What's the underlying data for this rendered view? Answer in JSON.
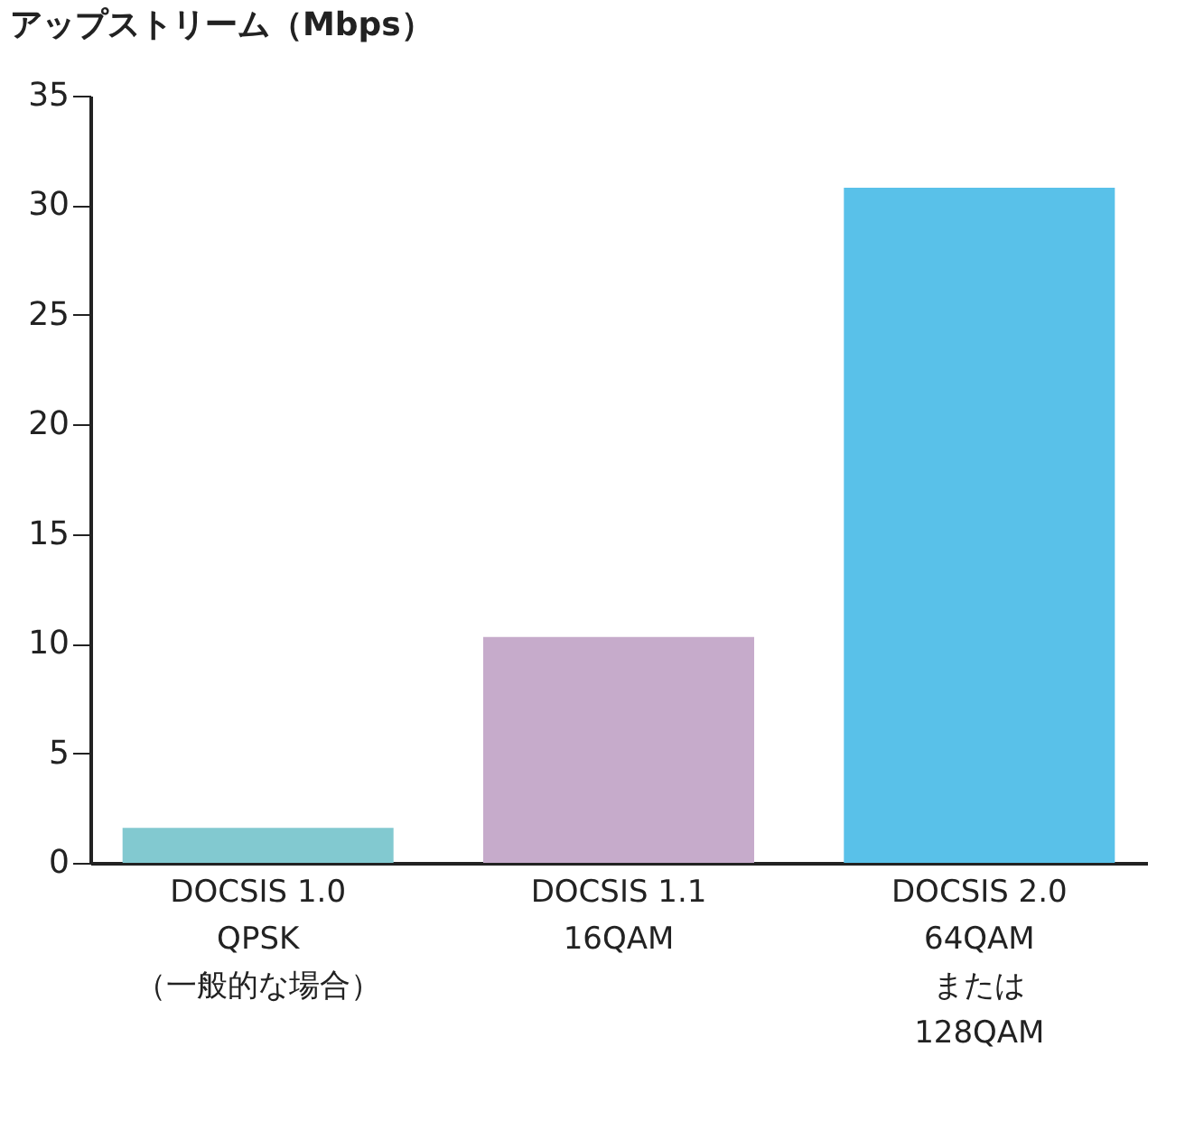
{
  "chart_data": {
    "type": "bar",
    "ylabel": "アップストリーム（Mbps）",
    "categories": [
      "DOCSIS 1.0\nQPSK\n（一般的な場合）",
      "DOCSIS 1.1\n16QAM",
      "DOCSIS 2.0\n64QAM\nまたは\n128QAM"
    ],
    "values": [
      1.6,
      10.3,
      30.8
    ],
    "colors": [
      "#82c9d0",
      "#c6abcb",
      "#59c1e9"
    ],
    "ylim": [
      0,
      35
    ],
    "yticks": [
      0,
      5,
      10,
      15,
      20,
      25,
      30,
      35
    ],
    "grid": false
  }
}
